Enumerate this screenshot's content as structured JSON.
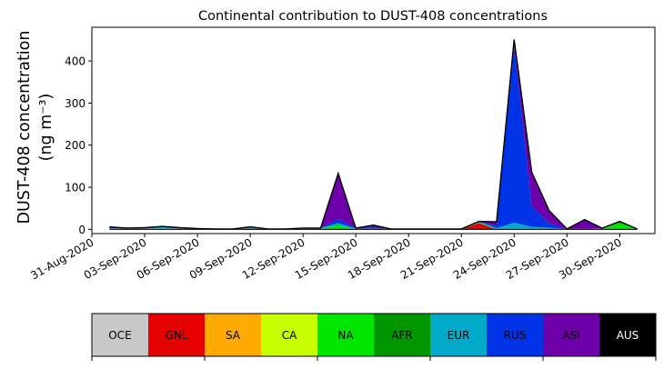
{
  "chart_data": {
    "type": "area",
    "title": "Continental contribution to DUST-408 concentrations",
    "ylabel_line1": "DUST-408 concentration",
    "ylabel_line2": "(ng m⁻³)",
    "xlabel": "",
    "x_start": "2020-08-31",
    "x_end": "2020-10-02",
    "ylim": [
      -10,
      480
    ],
    "yticks": [
      0,
      100,
      200,
      300,
      400
    ],
    "xticks": [
      "31-Aug-2020",
      "03-Sep-2020",
      "06-Sep-2020",
      "09-Sep-2020",
      "12-Sep-2020",
      "15-Sep-2020",
      "18-Sep-2020",
      "21-Sep-2020",
      "24-Sep-2020",
      "27-Sep-2020",
      "30-Sep-2020"
    ],
    "xtick_dates": [
      "2020-08-31",
      "2020-09-03",
      "2020-09-06",
      "2020-09-09",
      "2020-09-12",
      "2020-09-15",
      "2020-09-18",
      "2020-09-21",
      "2020-09-24",
      "2020-09-27",
      "2020-09-30"
    ],
    "dates": [
      "2020-09-01",
      "2020-09-02",
      "2020-09-03",
      "2020-09-04",
      "2020-09-05",
      "2020-09-06",
      "2020-09-07",
      "2020-09-08",
      "2020-09-09",
      "2020-09-10",
      "2020-09-11",
      "2020-09-12",
      "2020-09-13",
      "2020-09-14",
      "2020-09-15",
      "2020-09-16",
      "2020-09-17",
      "2020-09-18",
      "2020-09-19",
      "2020-09-20",
      "2020-09-21",
      "2020-09-22",
      "2020-09-23",
      "2020-09-24",
      "2020-09-25",
      "2020-09-26",
      "2020-09-27",
      "2020-09-28",
      "2020-09-29",
      "2020-09-30",
      "2020-10-01"
    ],
    "series": [
      {
        "name": "OCE",
        "color": "#c8c8c8",
        "values": [
          0,
          0,
          0,
          0,
          0,
          0,
          0,
          0,
          0,
          0,
          0,
          0,
          0,
          0,
          0,
          0,
          0,
          0,
          0,
          0,
          0,
          0,
          0,
          0,
          0,
          0,
          0,
          0,
          0,
          0,
          0
        ]
      },
      {
        "name": "GNL",
        "color": "#e60000",
        "values": [
          0,
          0,
          0,
          0,
          0,
          0,
          0,
          0,
          0,
          0,
          0,
          1,
          0,
          0,
          0,
          0,
          0,
          0,
          0,
          0,
          0,
          15,
          0,
          0,
          0,
          0,
          0,
          0,
          0,
          0,
          0
        ]
      },
      {
        "name": "SA",
        "color": "#ffaa00",
        "values": [
          0,
          0,
          0,
          0,
          0,
          0,
          0,
          0,
          0,
          0,
          0,
          0,
          0,
          0,
          0,
          0,
          0,
          0,
          0,
          0,
          0,
          0,
          0,
          0,
          0,
          0,
          0,
          0,
          0,
          0,
          0
        ]
      },
      {
        "name": "CA",
        "color": "#c8ff00",
        "values": [
          0,
          0,
          0,
          1,
          1,
          0,
          0,
          0,
          0,
          0,
          0,
          0,
          0,
          0,
          0,
          0,
          0,
          0,
          0,
          0,
          0,
          0,
          0,
          0,
          0,
          0,
          0,
          0,
          0,
          0,
          0
        ]
      },
      {
        "name": "NA",
        "color": "#00e600",
        "values": [
          1,
          1,
          2,
          2,
          1,
          1,
          0,
          0,
          0,
          0,
          0,
          1,
          2,
          10,
          1,
          1,
          0,
          0,
          0,
          0,
          0,
          1,
          1,
          1,
          1,
          1,
          0,
          0,
          1,
          15,
          1
        ]
      },
      {
        "name": "AFR",
        "color": "#009600",
        "values": [
          0,
          0,
          0,
          0,
          0,
          0,
          0,
          0,
          0,
          0,
          0,
          0,
          0,
          0,
          0,
          0,
          0,
          0,
          0,
          0,
          0,
          0,
          0,
          0,
          0,
          0,
          0,
          0,
          0,
          3,
          0
        ]
      },
      {
        "name": "EUR",
        "color": "#00aac8",
        "values": [
          2,
          1,
          1,
          2,
          1,
          1,
          1,
          1,
          4,
          1,
          1,
          1,
          1,
          5,
          1,
          1,
          1,
          1,
          1,
          1,
          1,
          3,
          2,
          15,
          5,
          3,
          1,
          1,
          1,
          1,
          0
        ]
      },
      {
        "name": "RUS",
        "color": "#0032e6",
        "values": [
          3,
          1,
          1,
          2,
          1,
          0,
          0,
          0,
          2,
          0,
          0,
          0,
          0,
          10,
          1,
          3,
          0,
          0,
          0,
          0,
          0,
          0,
          5,
          420,
          50,
          10,
          0,
          0,
          1,
          0,
          0
        ]
      },
      {
        "name": "ASI",
        "color": "#6e00aa",
        "values": [
          0,
          0,
          0,
          0,
          0,
          0,
          0,
          0,
          0,
          0,
          0,
          0,
          0,
          108,
          0,
          5,
          0,
          0,
          0,
          0,
          0,
          0,
          10,
          15,
          80,
          30,
          0,
          22,
          0,
          0,
          0
        ]
      },
      {
        "name": "AUS",
        "color": "#000000",
        "values": [
          0,
          0,
          0,
          0,
          0,
          0,
          0,
          0,
          0,
          0,
          0,
          0,
          0,
          0,
          0,
          0,
          0,
          0,
          0,
          0,
          0,
          0,
          0,
          0,
          0,
          0,
          0,
          0,
          0,
          0,
          0
        ]
      }
    ]
  }
}
